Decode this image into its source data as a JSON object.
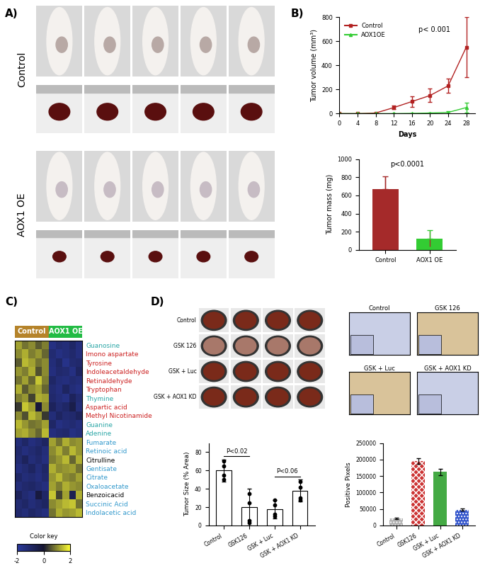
{
  "panel_labels": [
    "A)",
    "B)",
    "C)",
    "D)"
  ],
  "photo_panels": {
    "A": {
      "rows": [
        "Control",
        "AOX1 OE"
      ],
      "columns": 5
    },
    "D_wells": {
      "rows": [
        "Control",
        "GSK 126",
        "GSK + Luc",
        "GSK + AOX1 KD"
      ],
      "columns": 4
    },
    "D_ihc": {
      "titles": [
        "Control",
        "GSK 126",
        "GSK + Luc",
        "GSK + AOX1 KD"
      ]
    }
  },
  "chart_data": [
    {
      "type": "line",
      "xlabel": "Days",
      "ylabel": "Tumor volume (mm³)",
      "x": [
        0,
        4,
        8,
        12,
        16,
        20,
        24,
        28
      ],
      "series": [
        {
          "name": "Control",
          "color": "#b22222",
          "marker": "square",
          "values": [
            0,
            0,
            5,
            50,
            100,
            150,
            230,
            550
          ],
          "error": [
            0,
            0,
            3,
            15,
            45,
            55,
            60,
            250
          ]
        },
        {
          "name": "AOX1OE",
          "color": "#33cc33",
          "marker": "triangle",
          "values": [
            0,
            0,
            0,
            0,
            2,
            5,
            10,
            50
          ],
          "error": [
            0,
            0,
            0,
            0,
            2,
            3,
            8,
            40
          ]
        }
      ],
      "xlim": [
        0,
        30
      ],
      "ylim": [
        0,
        800
      ],
      "xticks": [
        0,
        4,
        8,
        12,
        16,
        20,
        24,
        28
      ],
      "yticks": [
        0,
        200,
        400,
        600,
        800
      ],
      "legend": "upper left",
      "annotations": [
        "p< 0.001"
      ]
    },
    {
      "type": "bar",
      "ylabel": "Tumor mass (mg)",
      "categories": [
        "Control",
        "AOX1 OE"
      ],
      "values": [
        670,
        125
      ],
      "error": [
        140,
        90
      ],
      "colors": [
        "#a52a2a",
        "#33cc33"
      ],
      "ylim": [
        0,
        1000
      ],
      "yticks": [
        0,
        200,
        400,
        600,
        800,
        1000
      ],
      "annotations": [
        "p<0.0001"
      ]
    },
    {
      "type": "heatmap",
      "column_groups": [
        {
          "name": "Control",
          "color": "#b5832a",
          "span": 5
        },
        {
          "name": "AOX1 OE",
          "color": "#22bb44",
          "span": 5
        }
      ],
      "rows": [
        "Guanosine",
        "Imono aspartate",
        "Tyrosine",
        "Indoleacetaldehyde",
        "Retinaldehyde",
        "Tryptophan",
        "Thymine",
        "Aspartic acid",
        "Methyl Nicotinamide",
        "Guanine",
        "Adenine",
        "Fumarate",
        "Retinoic acid",
        "Citrulline",
        "Gentisate",
        "Citrate",
        "Oxaloacetate",
        "Benzoicacid",
        "Succinic Acid",
        "Indolacetic acid"
      ],
      "colors": [
        "#2aa6a6",
        "#cc2222",
        "#cc2222",
        "#cc2222",
        "#cc2222",
        "#cc2222",
        "#2aa6a6",
        "#cc2222",
        "#cc2222",
        "#2aa6a6",
        "#2aa6a6",
        "#3399cc",
        "#3399cc",
        "#000000",
        "#3399cc",
        "#3399cc",
        "#3399cc",
        "#000000",
        "#3399cc",
        "#3399cc"
      ],
      "cells": [
        [
          1.2,
          0.8,
          1.0,
          0.6,
          0.9,
          -1.5,
          -1.2,
          -1.3,
          -1.0,
          -1.4
        ],
        [
          1.0,
          1.3,
          0.9,
          1.1,
          0.7,
          -1.2,
          -1.5,
          -1.3,
          -1.1,
          -1.4
        ],
        [
          0.6,
          1.4,
          1.2,
          0.8,
          1.0,
          -1.3,
          -1.0,
          -1.6,
          -1.2,
          -1.1
        ],
        [
          1.1,
          0.9,
          1.3,
          0.5,
          1.0,
          -1.4,
          -1.1,
          -1.2,
          -1.5,
          -0.9
        ],
        [
          0.8,
          1.2,
          0.7,
          1.5,
          0.9,
          -1.0,
          -1.3,
          -1.4,
          -1.2,
          -1.3
        ],
        [
          1.3,
          0.6,
          1.0,
          1.2,
          0.7,
          -1.2,
          -1.4,
          -0.9,
          -1.3,
          -1.5
        ],
        [
          0.9,
          1.1,
          0.4,
          1.3,
          1.2,
          -1.1,
          -1.3,
          -1.5,
          -0.8,
          -1.2
        ],
        [
          0.3,
          1.5,
          1.2,
          -0.2,
          1.0,
          -0.8,
          -1.2,
          -1.0,
          -0.5,
          -1.3
        ],
        [
          1.0,
          0.5,
          1.4,
          1.1,
          0.3,
          -1.3,
          -0.9,
          -1.2,
          -1.1,
          -0.8
        ],
        [
          1.4,
          1.1,
          0.8,
          0.9,
          1.2,
          -1.0,
          -1.5,
          -1.3,
          -1.2,
          -1.4
        ],
        [
          1.2,
          1.3,
          1.0,
          0.7,
          1.4,
          -1.4,
          -1.2,
          -1.1,
          -1.5,
          -1.3
        ],
        [
          -1.3,
          -1.0,
          -1.4,
          -1.2,
          -0.9,
          1.2,
          0.8,
          1.3,
          1.0,
          1.1
        ],
        [
          -1.1,
          -1.4,
          -1.2,
          -1.0,
          -1.3,
          1.0,
          1.3,
          0.9,
          1.4,
          1.1
        ],
        [
          -1.2,
          -0.8,
          -1.3,
          -1.1,
          -1.4,
          0.9,
          1.1,
          1.4,
          0.7,
          1.3
        ],
        [
          -1.4,
          -1.2,
          -0.9,
          -1.3,
          -1.0,
          1.3,
          1.0,
          1.1,
          1.2,
          0.8
        ],
        [
          -1.0,
          -1.3,
          -1.2,
          -1.4,
          -1.1,
          1.1,
          1.4,
          1.0,
          0.9,
          1.2
        ],
        [
          -1.3,
          -1.1,
          -1.0,
          -1.2,
          -1.4,
          1.2,
          0.9,
          1.3,
          1.1,
          1.0
        ],
        [
          -0.8,
          -1.2,
          -1.4,
          -0.3,
          -1.0,
          1.5,
          0.4,
          1.2,
          -0.6,
          1.3
        ],
        [
          -1.2,
          -1.0,
          -1.3,
          -1.1,
          -0.9,
          1.0,
          1.2,
          1.4,
          1.5,
          0.8
        ],
        [
          -1.1,
          -1.3,
          -1.0,
          -1.2,
          -1.4,
          0.8,
          1.3,
          1.1,
          1.2,
          1.4
        ]
      ],
      "colorbar": {
        "label": "Color key",
        "lim": [
          -2,
          2
        ],
        "ticks": [
          -2,
          0,
          2
        ]
      }
    },
    {
      "type": "bar",
      "ylabel": "Tumor Size (% Area)",
      "categories": [
        "Control",
        "GSK126",
        "GSK + Luc",
        "GSK + AOX1 KD"
      ],
      "values": [
        60,
        20,
        18,
        38
      ],
      "error": [
        12,
        20,
        10,
        12
      ],
      "points": [
        [
          70,
          65,
          55,
          50
        ],
        [
          35,
          25,
          5,
          3
        ],
        [
          28,
          22,
          10,
          12
        ],
        [
          48,
          42,
          30,
          28
        ]
      ],
      "marker": "circle",
      "color": "#ffffff",
      "ylim": [
        0,
        90
      ],
      "yticks": [
        0,
        20,
        40,
        60,
        80
      ],
      "annotations": [
        {
          "text": "P<0.02",
          "between": [
            0,
            1
          ]
        },
        {
          "text": "P<0.06",
          "between": [
            2,
            3
          ]
        }
      ]
    },
    {
      "type": "bar",
      "ylabel": "Positive Pixels",
      "categories": [
        "Control",
        "GSK126",
        "GSK + Luc",
        "GSK + AOX1 KD"
      ],
      "values": [
        22000,
        195000,
        162000,
        48000
      ],
      "error": [
        2000,
        8000,
        10000,
        4000
      ],
      "colors": [
        "#b0b0b0",
        "#cc3333",
        "#44aa44",
        "#3355cc"
      ],
      "ylim": [
        0,
        250000
      ],
      "yticks": [
        0,
        50000,
        100000,
        150000,
        200000,
        250000
      ]
    }
  ]
}
